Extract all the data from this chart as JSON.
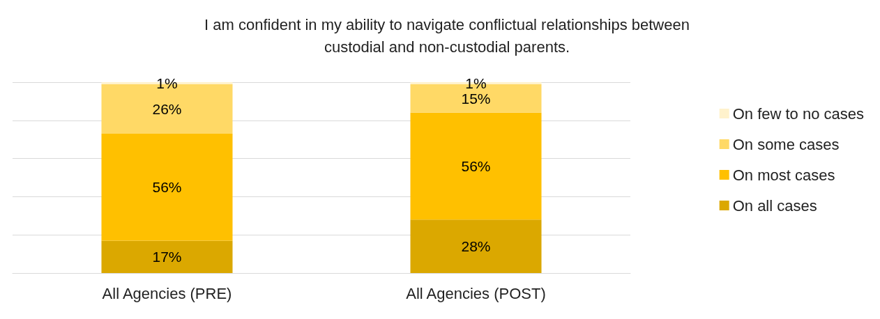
{
  "chart_data": {
    "type": "bar",
    "title": "I am confident in my ability to navigate conflictual relationships between\ncustodial and non-custodial parents.",
    "categories": [
      "All Agencies (PRE)",
      "All Agencies (POST)"
    ],
    "stacked": true,
    "series": [
      {
        "name": "On all cases",
        "color": "#dba800",
        "values": [
          17,
          28
        ],
        "value_labels": [
          "17%",
          "28%"
        ]
      },
      {
        "name": "On most cases",
        "color": "#ffc000",
        "values": [
          56,
          56
        ],
        "value_labels": [
          "56%",
          "56%"
        ]
      },
      {
        "name": "On some cases",
        "color": "#ffd966",
        "values": [
          26,
          15
        ],
        "value_labels": [
          "26%",
          "15%"
        ]
      },
      {
        "name": "On few to no cases",
        "color": "#fff2cc",
        "values": [
          1,
          1
        ],
        "value_labels": [
          "1%",
          "1%"
        ]
      }
    ],
    "tick_labels": "x",
    "grid": "y",
    "legend": "right"
  }
}
